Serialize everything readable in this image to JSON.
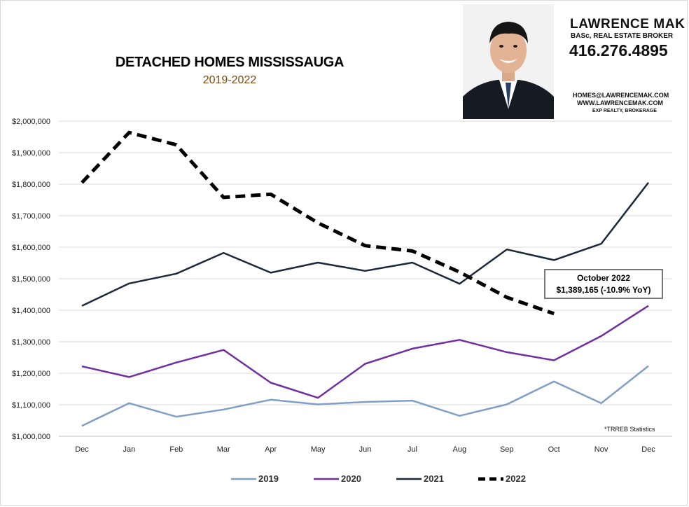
{
  "header": {
    "title": "DETACHED HOMES MISSISSAUGA",
    "subtitle": "2019-2022"
  },
  "agent": {
    "name": "LAWRENCE MAK",
    "title": "BASc, REAL ESTATE BROKER",
    "phone": "416.276.4895",
    "email": "HOMES@LAWRENCEMAK.COM",
    "website": "WWW.LAWRENCEMAK.COM",
    "brokerage": "EXP REALTY, BROKERAGE"
  },
  "callout": {
    "line1": "October 2022",
    "line2": "$1,389,165  (-10.9%  YoY)"
  },
  "footnote": "*TRREB Statistics",
  "colors": {
    "s2019": "#7f9fc4",
    "s2020": "#7030a0",
    "s2021": "#1a2a3c",
    "s2022": "#000000",
    "grid": "#d9d9d9"
  },
  "chart_data": {
    "type": "line",
    "title": "DETACHED HOMES MISSISSAUGA",
    "subtitle": "2019-2022",
    "categories": [
      "Dec",
      "Jan",
      "Feb",
      "Mar",
      "Apr",
      "May",
      "Jun",
      "Jul",
      "Aug",
      "Sep",
      "Oct",
      "Nov",
      "Dec"
    ],
    "ylim": [
      1000000,
      2000000
    ],
    "yticks": [
      1000000,
      1100000,
      1200000,
      1300000,
      1400000,
      1500000,
      1600000,
      1700000,
      1800000,
      1900000,
      2000000
    ],
    "ytick_labels": [
      "$1,000,000",
      "$1,100,000",
      "$1,200,000",
      "$1,300,000",
      "$1,400,000",
      "$1,500,000",
      "$1,600,000",
      "$1,700,000",
      "$1,800,000",
      "$1,900,000",
      "$2,000,000"
    ],
    "grid": true,
    "legend_position": "bottom",
    "series": [
      {
        "name": "2019",
        "color": "#7f9fc4",
        "dashed": false,
        "values": [
          1033000,
          1105000,
          1062000,
          1085000,
          1116000,
          1101000,
          1109000,
          1113000,
          1065000,
          1101000,
          1174000,
          1105000,
          1223000
        ]
      },
      {
        "name": "2020",
        "color": "#7030a0",
        "dashed": false,
        "values": [
          1222000,
          1188000,
          1234000,
          1274000,
          1170000,
          1122000,
          1230000,
          1278000,
          1306000,
          1267000,
          1241000,
          1318000,
          1414000
        ]
      },
      {
        "name": "2021",
        "color": "#1a2a3c",
        "dashed": false,
        "values": [
          1414000,
          1485000,
          1516000,
          1582000,
          1519000,
          1551000,
          1525000,
          1551000,
          1484000,
          1593000,
          1559000,
          1611000,
          1805000
        ]
      },
      {
        "name": "2022",
        "color": "#000000",
        "dashed": true,
        "values": [
          1805000,
          1964000,
          1925000,
          1758000,
          1768000,
          1677000,
          1605000,
          1588000,
          1521000,
          1441000,
          1389165,
          null,
          null
        ]
      }
    ]
  }
}
